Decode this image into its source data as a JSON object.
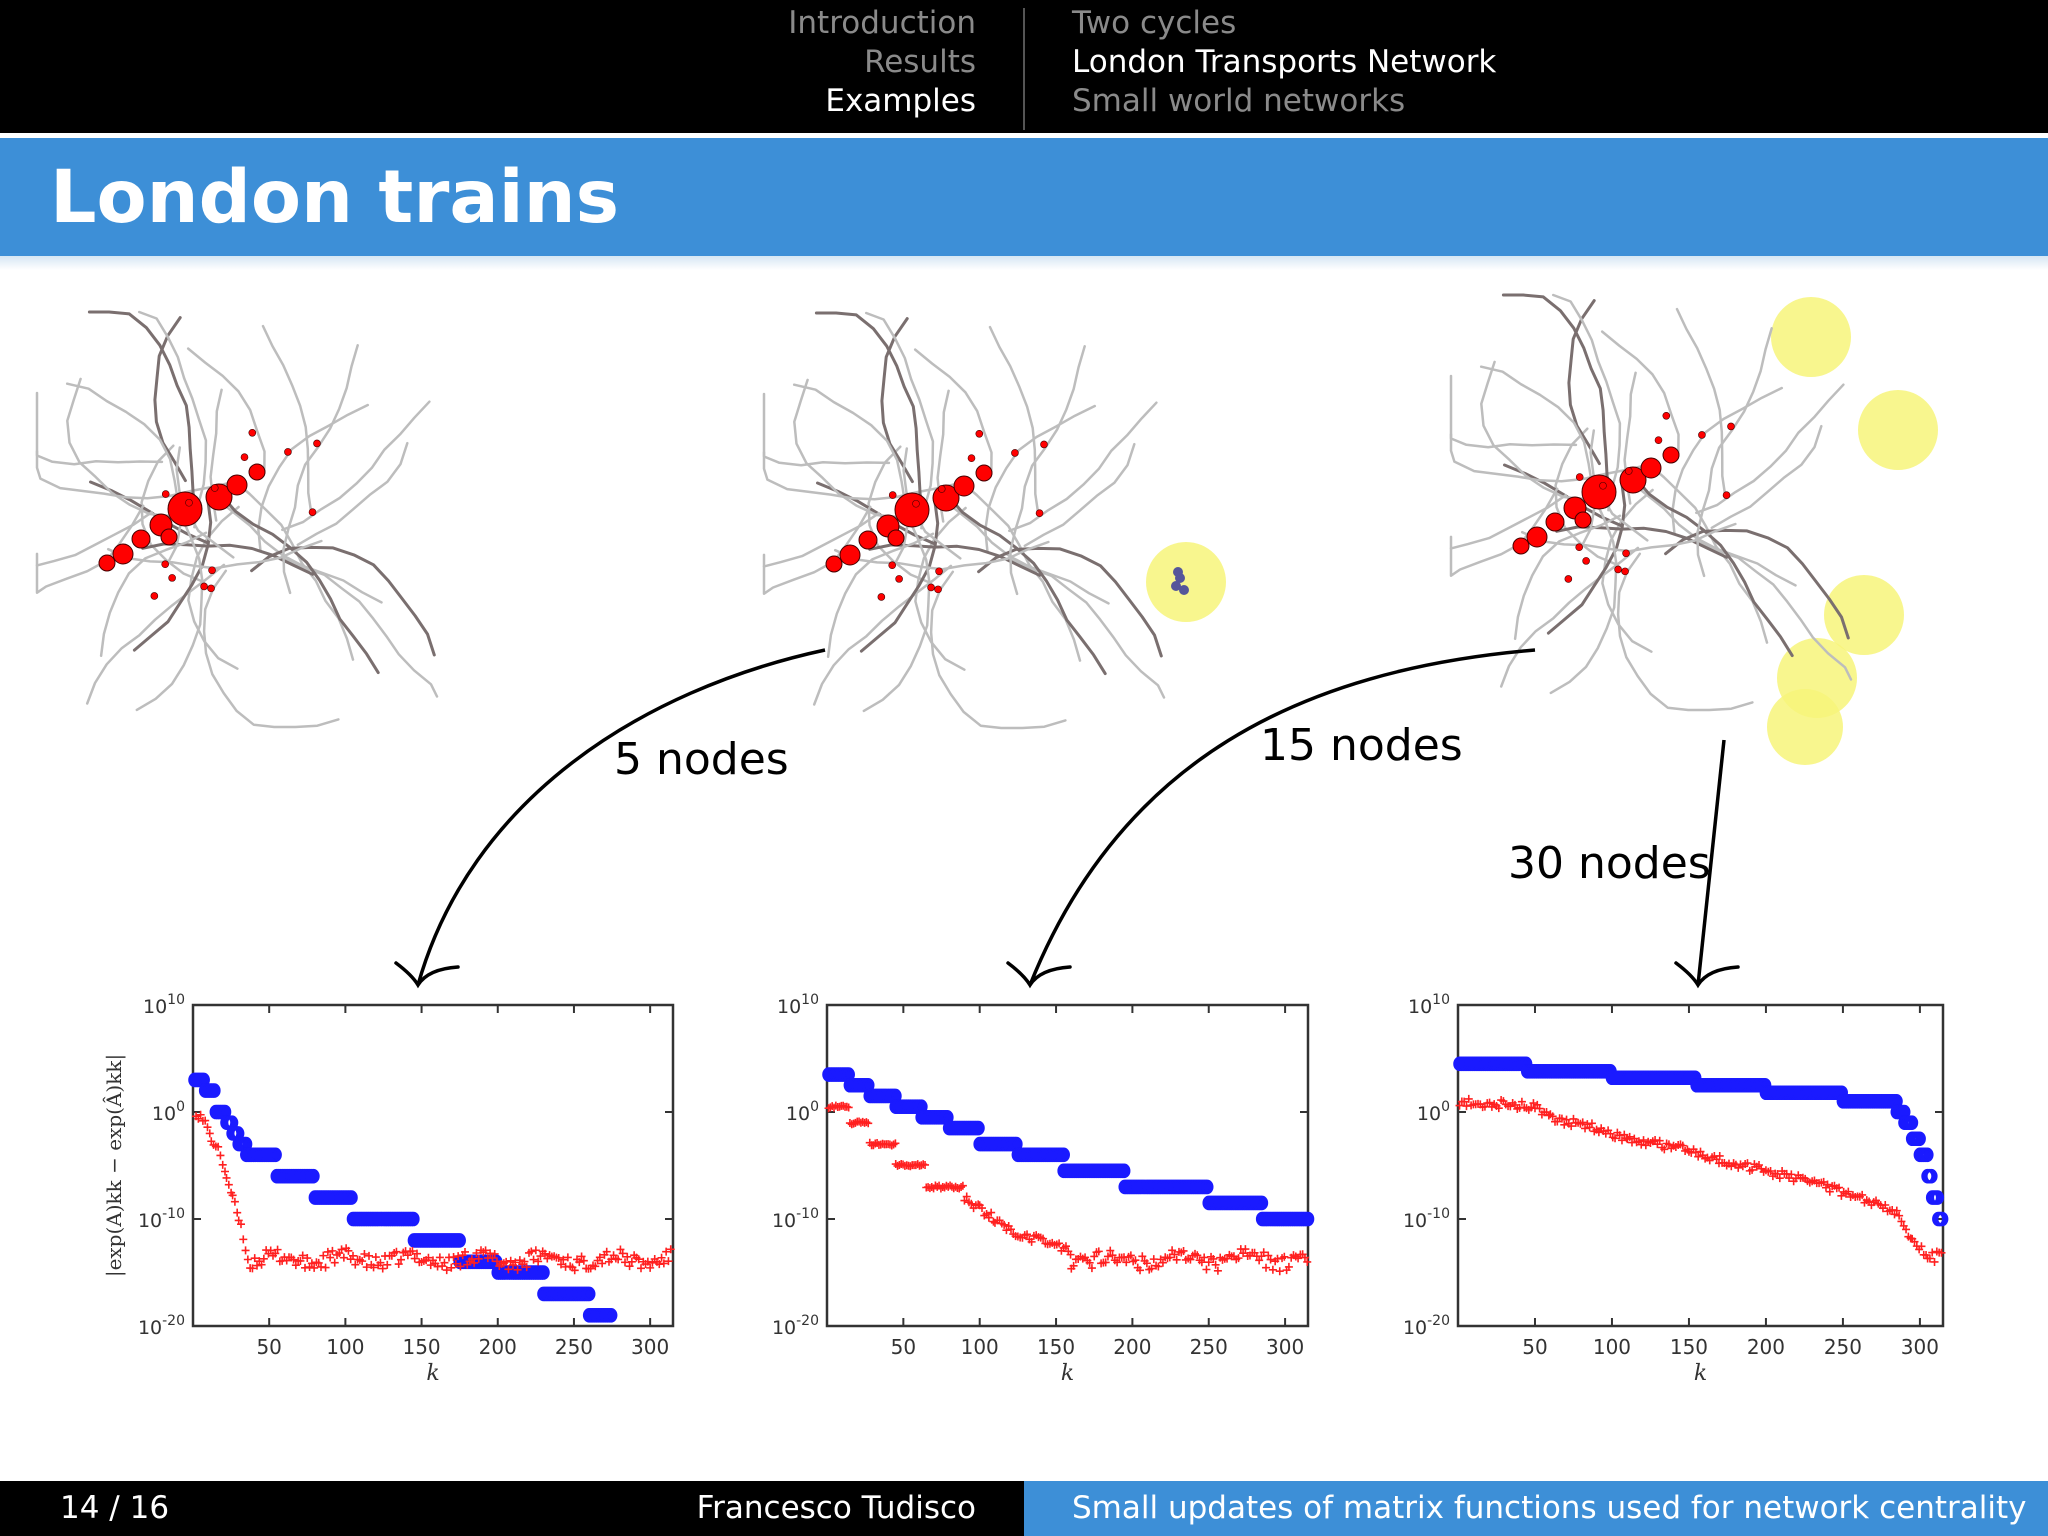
{
  "nav": {
    "sections": [
      "Introduction",
      "Results",
      "Examples"
    ],
    "subsections": [
      "Two cycles",
      "London Transports Network",
      "Small world networks"
    ],
    "active_section": 2,
    "active_subsection": 1
  },
  "slide_title": "London trains",
  "annotations": [
    "5 nodes",
    "15 nodes",
    "30 nodes"
  ],
  "footer": {
    "page": "14 / 16",
    "author": "Francesco Tudisco",
    "talk_title": "Small updates of matrix functions used for network centrality"
  },
  "colors": {
    "nav_bg": "#000000",
    "title_bar": "#3d8fd7",
    "series_blue": "#1a1aff",
    "series_red": "#ff2020",
    "highlight": "#f7f47a",
    "network_edges": "#bdbdbd",
    "network_nodes": "#ff0000"
  },
  "chart_data": [
    {
      "type": "scatter",
      "xlabel": "k",
      "ylabel": "|exp(A)kk − exp(Â)kk|",
      "yscale": "log",
      "ylim": [
        1e-20,
        10000000000.0
      ],
      "yticks": [
        "10^10",
        "10^0",
        "10^-10",
        "10^-20"
      ],
      "xlim": [
        0,
        315
      ],
      "xticks": [
        50,
        100,
        150,
        200,
        250,
        300
      ],
      "series": [
        {
          "marker": "circle",
          "color": "blue",
          "steps": [
            [
              1,
              8,
              3
            ],
            [
              8,
              15,
              2
            ],
            [
              15,
              22,
              0
            ],
            [
              22,
              26,
              -1
            ],
            [
              26,
              30,
              -2
            ],
            [
              30,
              35,
              -3
            ],
            [
              35,
              55,
              -4
            ],
            [
              55,
              80,
              -6
            ],
            [
              80,
              105,
              -8
            ],
            [
              105,
              145,
              -10
            ],
            [
              145,
              175,
              -12
            ],
            [
              175,
              200,
              -14
            ],
            [
              200,
              230,
              -15
            ],
            [
              230,
              260,
              -17
            ],
            [
              260,
              275,
              -19
            ]
          ]
        },
        {
          "marker": "plus",
          "color": "red",
          "decay": [
            [
              2,
              0
            ],
            [
              8,
              -1
            ],
            [
              12,
              -2.5
            ],
            [
              18,
              -4
            ],
            [
              22,
              -6
            ],
            [
              26,
              -8
            ],
            [
              30,
              -10
            ],
            [
              36,
              -13.5
            ]
          ],
          "floor": -13.8
        }
      ]
    },
    {
      "type": "scatter",
      "xlabel": "k",
      "yscale": "log",
      "ylim": [
        1e-20,
        10000000000.0
      ],
      "yticks": [
        "10^10",
        "10^0",
        "10^-10",
        "10^-20"
      ],
      "xlim": [
        0,
        315
      ],
      "xticks": [
        50,
        100,
        150,
        200,
        250,
        300
      ],
      "series": [
        {
          "marker": "circle",
          "color": "blue",
          "steps": [
            [
              1,
              15,
              3.5
            ],
            [
              15,
              28,
              2.5
            ],
            [
              28,
              45,
              1.5
            ],
            [
              45,
              62,
              0.5
            ],
            [
              62,
              80,
              -0.5
            ],
            [
              80,
              100,
              -1.5
            ],
            [
              100,
              125,
              -3
            ],
            [
              125,
              155,
              -4
            ],
            [
              155,
              195,
              -5.5
            ],
            [
              195,
              250,
              -7
            ],
            [
              250,
              285,
              -8.5
            ],
            [
              285,
              315,
              -10
            ]
          ]
        },
        {
          "marker": "plus",
          "color": "red",
          "steps": [
            [
              1,
              15,
              0.5
            ],
            [
              15,
              28,
              -1
            ],
            [
              28,
              45,
              -3
            ],
            [
              45,
              65,
              -5
            ],
            [
              65,
              90,
              -7
            ]
          ],
          "decay": [
            [
              90,
              -8
            ],
            [
              100,
              -9
            ],
            [
              110,
              -10
            ],
            [
              125,
              -11.5
            ],
            [
              140,
              -12
            ],
            [
              160,
              -13
            ]
          ],
          "floor": -13.8
        }
      ]
    },
    {
      "type": "scatter",
      "xlabel": "k",
      "yscale": "log",
      "ylim": [
        1e-20,
        10000000000.0
      ],
      "yticks": [
        "10^10",
        "10^0",
        "10^-10",
        "10^-20"
      ],
      "xlim": [
        0,
        315
      ],
      "xticks": [
        50,
        100,
        150,
        200,
        250,
        300
      ],
      "series": [
        {
          "marker": "circle",
          "color": "blue",
          "steps": [
            [
              1,
              45,
              4.5
            ],
            [
              45,
              100,
              3.8
            ],
            [
              100,
              155,
              3.2
            ],
            [
              155,
              200,
              2.5
            ],
            [
              200,
              250,
              1.8
            ],
            [
              250,
              285,
              1
            ],
            [
              285,
              290,
              0
            ],
            [
              290,
              295,
              -1
            ],
            [
              295,
              300,
              -2.5
            ],
            [
              300,
              305,
              -4
            ],
            [
              305,
              308,
              -6
            ],
            [
              308,
              312,
              -8
            ],
            [
              312,
              315,
              -10
            ]
          ]
        },
        {
          "marker": "plus",
          "color": "red",
          "decay": [
            [
              1,
              1
            ],
            [
              50,
              0.5
            ],
            [
              60,
              -0.5
            ],
            [
              90,
              -1.5
            ],
            [
              110,
              -2.5
            ],
            [
              150,
              -3.5
            ],
            [
              170,
              -4.5
            ],
            [
              200,
              -5.5
            ],
            [
              240,
              -7
            ],
            [
              270,
              -8.5
            ],
            [
              285,
              -9.5
            ],
            [
              295,
              -12
            ],
            [
              305,
              -13.5
            ]
          ],
          "floor": -13.5
        }
      ]
    }
  ]
}
